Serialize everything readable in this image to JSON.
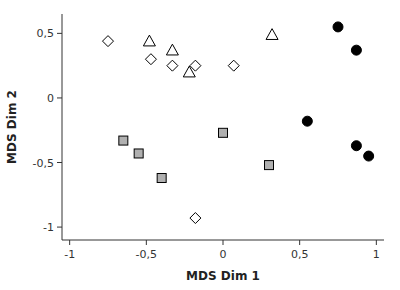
{
  "chart_data": {
    "type": "scatter",
    "xlabel": "MDS Dim 1",
    "ylabel": "MDS Dim 2",
    "xlim": [
      -1.05,
      1.05
    ],
    "ylim": [
      -1.1,
      0.65
    ],
    "xticks": [
      -1,
      {
        "value": -0.5,
        "label": "-0,5"
      },
      0,
      {
        "value": 0.5,
        "label": "0,5"
      },
      1
    ],
    "yticks": [
      -1,
      {
        "value": -0.5,
        "label": "-0,5"
      },
      0,
      {
        "value": 0.5,
        "label": "0,5"
      }
    ],
    "grid": false,
    "series": [
      {
        "marker": "circle",
        "color": "#000000",
        "x": [
          0.75,
          0.87,
          0.55,
          0.87,
          0.95
        ],
        "values": [
          0.55,
          0.37,
          -0.18,
          -0.37,
          -0.45
        ]
      },
      {
        "marker": "diamond",
        "color": "#ffffff",
        "x": [
          -0.75,
          -0.47,
          -0.33,
          -0.18,
          0.07,
          -0.18
        ],
        "values": [
          0.44,
          0.3,
          0.25,
          0.25,
          0.25,
          -0.93
        ]
      },
      {
        "marker": "triangle",
        "color": "#ffffff",
        "x": [
          -0.48,
          -0.33,
          -0.22,
          0.32
        ],
        "values": [
          0.44,
          0.37,
          0.2,
          0.49
        ]
      },
      {
        "marker": "square",
        "color": "#b0b0b0",
        "x": [
          -0.65,
          -0.55,
          -0.4,
          0.0,
          0.3
        ],
        "values": [
          -0.33,
          -0.43,
          -0.62,
          -0.27,
          -0.52
        ]
      }
    ]
  }
}
